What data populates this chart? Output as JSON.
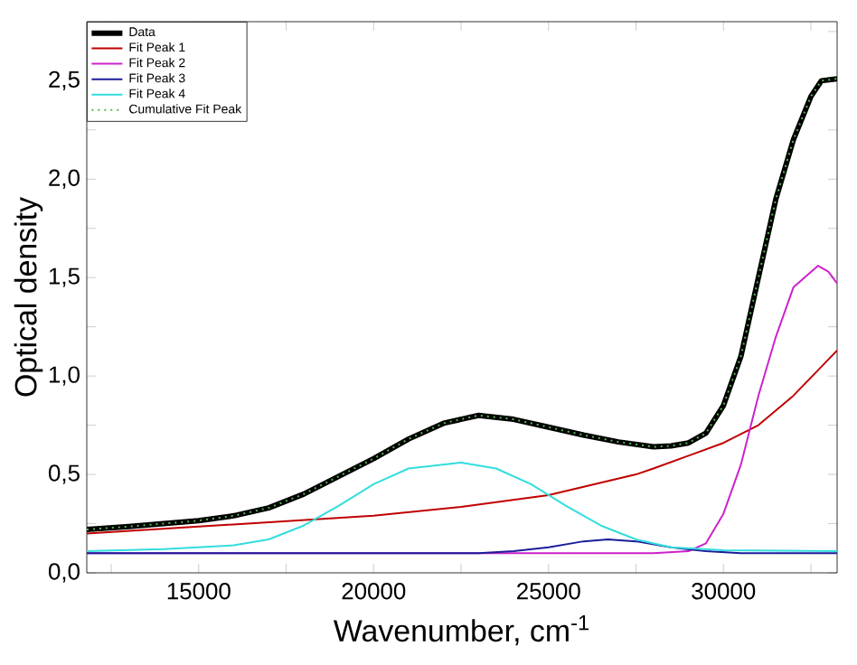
{
  "chart_data": {
    "type": "line",
    "xlabel": "Wavenumber, cm$^{-1}$",
    "ylabel": "Optical density",
    "xlim": [
      11800,
      33250
    ],
    "ylim": [
      0,
      2.8
    ],
    "xticks": [
      {
        "value": 12500,
        "label": null
      },
      15000,
      {
        "value": 17500,
        "label": null
      },
      20000,
      {
        "value": 22500,
        "label": null
      },
      25000,
      {
        "value": 27500,
        "label": null
      },
      30000,
      {
        "value": 32500,
        "label": null
      }
    ],
    "yticks": [
      {
        "value": 0,
        "label": "0,0"
      },
      {
        "value": 0.25,
        "label": null
      },
      {
        "value": 0.5,
        "label": "0,5"
      },
      {
        "value": 0.75,
        "label": null
      },
      {
        "value": 1.0,
        "label": "1,0"
      },
      {
        "value": 1.25,
        "label": null
      },
      {
        "value": 1.5,
        "label": "1,5"
      },
      {
        "value": 1.75,
        "label": null
      },
      {
        "value": 2.0,
        "label": "2,0"
      },
      {
        "value": 2.25,
        "label": null
      },
      {
        "value": 2.5,
        "label": "2,5"
      },
      {
        "value": 2.75,
        "label": null
      }
    ],
    "legend": "top left",
    "grid": false,
    "marker": "none",
    "series": [
      {
        "name": "Data",
        "color": "#000000",
        "line_style": "solid",
        "x": [
          11800,
          13000,
          14000,
          15000,
          16000,
          17000,
          18000,
          19000,
          20000,
          21000,
          22000,
          23000,
          24000,
          25000,
          26000,
          27000,
          28000,
          28500,
          29000,
          29500,
          30000,
          30500,
          31000,
          31500,
          32000,
          32500,
          32800,
          33250
        ],
        "values": [
          0.22,
          0.235,
          0.25,
          0.265,
          0.29,
          0.33,
          0.4,
          0.49,
          0.58,
          0.68,
          0.76,
          0.8,
          0.78,
          0.74,
          0.7,
          0.665,
          0.64,
          0.645,
          0.66,
          0.71,
          0.85,
          1.1,
          1.5,
          1.9,
          2.2,
          2.42,
          2.5,
          2.51
        ]
      },
      {
        "name": "Fit Peak 1",
        "color": "#c00000",
        "line_style": "solid",
        "x": [
          11800,
          15000,
          20000,
          22500,
          25000,
          27500,
          28000,
          30000,
          31000,
          32000,
          33250
        ],
        "values": [
          0.2,
          0.235,
          0.29,
          0.335,
          0.395,
          0.5,
          0.53,
          0.66,
          0.75,
          0.9,
          1.13
        ]
      },
      {
        "name": "Fit Peak 2",
        "color": "#cc22cc",
        "line_style": "solid",
        "x": [
          11800,
          28000,
          29000,
          29500,
          30000,
          30500,
          31000,
          31500,
          32000,
          32700,
          33000,
          33250
        ],
        "values": [
          0.1,
          0.1,
          0.11,
          0.15,
          0.3,
          0.55,
          0.9,
          1.2,
          1.45,
          1.56,
          1.53,
          1.47
        ]
      },
      {
        "name": "Fit Peak 3",
        "color": "#1c1c99",
        "line_style": "solid",
        "x": [
          11800,
          23000,
          24000,
          25000,
          26000,
          26700,
          27500,
          28500,
          29500,
          30500,
          33250
        ],
        "values": [
          0.1,
          0.1,
          0.11,
          0.13,
          0.16,
          0.17,
          0.16,
          0.13,
          0.11,
          0.1,
          0.1
        ]
      },
      {
        "name": "Fit Peak 4",
        "color": "#33dddd",
        "line_style": "solid",
        "x": [
          11800,
          14000,
          16000,
          17000,
          18000,
          19000,
          20000,
          21000,
          22500,
          23500,
          24500,
          25500,
          26500,
          27500,
          28500,
          30000,
          33250
        ],
        "values": [
          0.11,
          0.12,
          0.14,
          0.17,
          0.24,
          0.34,
          0.45,
          0.53,
          0.56,
          0.53,
          0.45,
          0.34,
          0.24,
          0.17,
          0.13,
          0.115,
          0.11
        ]
      },
      {
        "name": "Cumulative Fit Peak",
        "color": "#55bb55",
        "line_style": "dotted",
        "x": [
          11800,
          13000,
          14000,
          15000,
          16000,
          17000,
          18000,
          19000,
          20000,
          21000,
          22000,
          23000,
          24000,
          25000,
          26000,
          27000,
          28000,
          28500,
          29000,
          29500,
          30000,
          30500,
          31000,
          31500,
          32000,
          32500,
          32800,
          33250
        ],
        "values": [
          0.22,
          0.235,
          0.25,
          0.265,
          0.29,
          0.33,
          0.4,
          0.49,
          0.58,
          0.68,
          0.76,
          0.8,
          0.78,
          0.74,
          0.7,
          0.665,
          0.64,
          0.645,
          0.66,
          0.71,
          0.85,
          1.1,
          1.5,
          1.9,
          2.2,
          2.42,
          2.5,
          2.51
        ]
      }
    ]
  }
}
